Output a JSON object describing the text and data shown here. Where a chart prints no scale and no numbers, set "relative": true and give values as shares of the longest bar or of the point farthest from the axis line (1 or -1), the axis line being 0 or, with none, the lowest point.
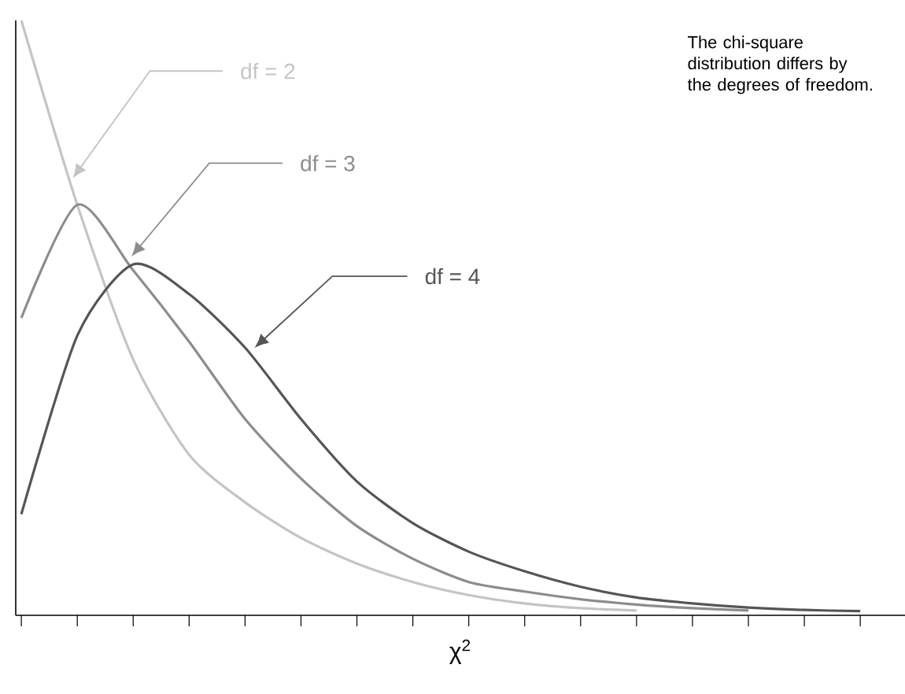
{
  "chart_data": {
    "type": "line",
    "relative": true,
    "xlabel": "χ$^{2}$",
    "categories": [
      null,
      null,
      null,
      null,
      null,
      null,
      null,
      null,
      null,
      null,
      null,
      null,
      null,
      null,
      null,
      null
    ],
    "series": [
      {
        "name": "df = 2",
        "color": "#c4c4c4",
        "values": [
          1.0,
          0.69,
          0.43,
          0.27,
          0.19,
          0.13,
          0.087,
          0.056,
          0.034,
          0.02,
          0.012,
          0.008,
          null,
          null,
          null,
          null
        ]
      },
      {
        "name": "df = 3",
        "color": "#8c8c8c",
        "values": [
          0.5,
          0.69,
          0.58,
          0.46,
          0.33,
          0.23,
          0.15,
          0.095,
          0.056,
          0.04,
          0.027,
          0.018,
          0.012,
          0.008,
          null,
          null
        ]
      },
      {
        "name": "df = 4",
        "color": "#555555",
        "values": [
          0.17,
          0.47,
          0.59,
          0.54,
          0.45,
          0.33,
          0.225,
          0.155,
          0.107,
          0.074,
          0.048,
          0.03,
          0.02,
          0.013,
          0.009,
          0.007
        ]
      }
    ],
    "annotations": [
      "The chi-square distribution differs by the degrees of freedom."
    ],
    "legend": false,
    "grid": false
  }
}
